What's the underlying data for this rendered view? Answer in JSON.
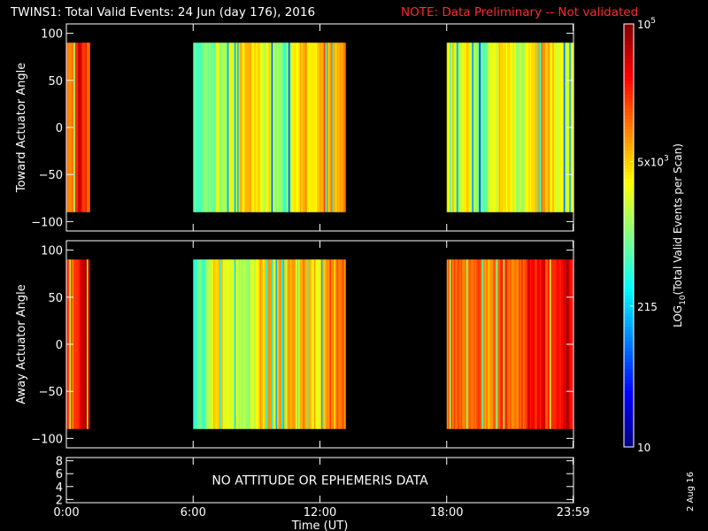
{
  "title": {
    "main": "TWINS1: Total Valid Events: 24 Jun (day 176), 2016",
    "note": "NOTE: Data Preliminary -- Not validated",
    "note_color": "#ff2a2a"
  },
  "datestamp": "2 Aug 16",
  "chart_data": [
    {
      "type": "heatmap",
      "panel": "toward",
      "ylabel": "Toward Actuator Angle",
      "ylim": [
        -110,
        110
      ],
      "yticks": [
        100,
        50,
        0,
        -50,
        -100
      ],
      "data_range": [
        -90,
        90
      ],
      "x_range_hours": [
        0,
        24
      ],
      "segments": [
        {
          "start": 0.0,
          "end": 1.1,
          "level": 0.81
        },
        {
          "start": 6.0,
          "end": 13.2,
          "level": 0.62
        },
        {
          "start": 18.0,
          "end": 24.0,
          "level": 0.58
        }
      ]
    },
    {
      "type": "heatmap",
      "panel": "away",
      "ylabel": "Away Actuator Angle",
      "ylim": [
        -110,
        110
      ],
      "yticks": [
        100,
        50,
        0,
        -50,
        -100
      ],
      "data_range": [
        -90,
        90
      ],
      "x_range_hours": [
        0,
        24
      ],
      "segments": [
        {
          "start": 0.0,
          "end": 1.1,
          "level": 0.88
        },
        {
          "start": 6.0,
          "end": 13.2,
          "level": 0.66
        },
        {
          "start": 18.0,
          "end": 24.0,
          "level": 0.78
        }
      ]
    },
    {
      "type": "line",
      "panel": "ephemeris",
      "ylim": [
        1.5,
        8.5
      ],
      "yticks": [
        8,
        6,
        4,
        2
      ],
      "message": "NO ATTITUDE OR EPHEMERIS DATA"
    }
  ],
  "xaxis": {
    "label": "Time (UT)",
    "ticks": [
      {
        "hour": 0,
        "label": "0:00"
      },
      {
        "hour": 6,
        "label": "6:00"
      },
      {
        "hour": 12,
        "label": "12:00"
      },
      {
        "hour": 18,
        "label": "18:00"
      },
      {
        "hour": 23.98,
        "label": "23:59"
      }
    ]
  },
  "colorbar": {
    "label": "LOG10(Total Valid Events per Scan)",
    "label_pre": "LOG",
    "label_sub": "10",
    "label_post": "(Total Valid Events per Scan)",
    "scale": "log",
    "range": [
      10,
      100000
    ],
    "ticks": [
      {
        "value": 100000,
        "base": "10",
        "exp": "5"
      },
      {
        "value": 5000,
        "base": "5x10",
        "exp": "3"
      },
      {
        "value": 215,
        "base": "215",
        "exp": ""
      },
      {
        "value": 10,
        "base": "10",
        "exp": ""
      }
    ]
  }
}
